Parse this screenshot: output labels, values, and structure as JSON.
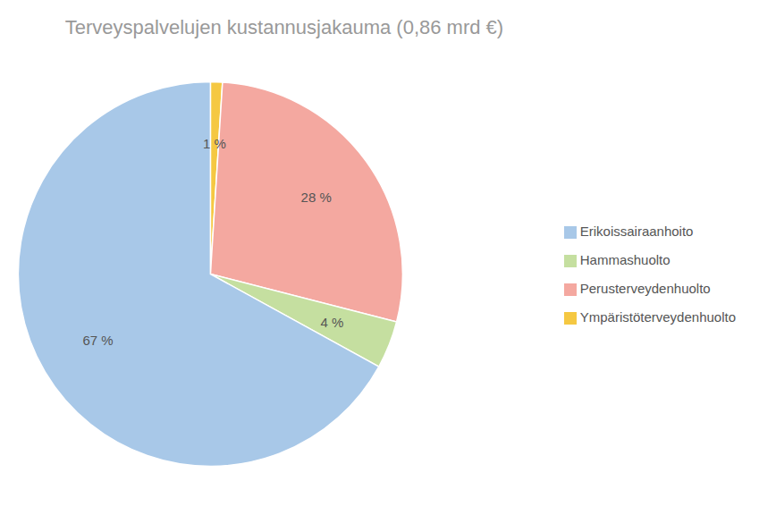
{
  "chart_data": {
    "type": "pie",
    "title": "Terveyspalvelujen kustannusjakauma (0,86 mrd €)",
    "categories": [
      "Ympäristöterveydenhuolto",
      "Perusterveydenhuolto",
      "Hammashuolto",
      "Erikoissairaanhoito"
    ],
    "values": [
      1,
      28,
      4,
      67
    ],
    "value_labels": [
      "1 %",
      "28 %",
      "4 %",
      "67 %"
    ],
    "colors": [
      "#f5c842",
      "#f4a8a0",
      "#c5dfa0",
      "#a8c8e8"
    ],
    "data_labels": true,
    "legend": "right"
  }
}
